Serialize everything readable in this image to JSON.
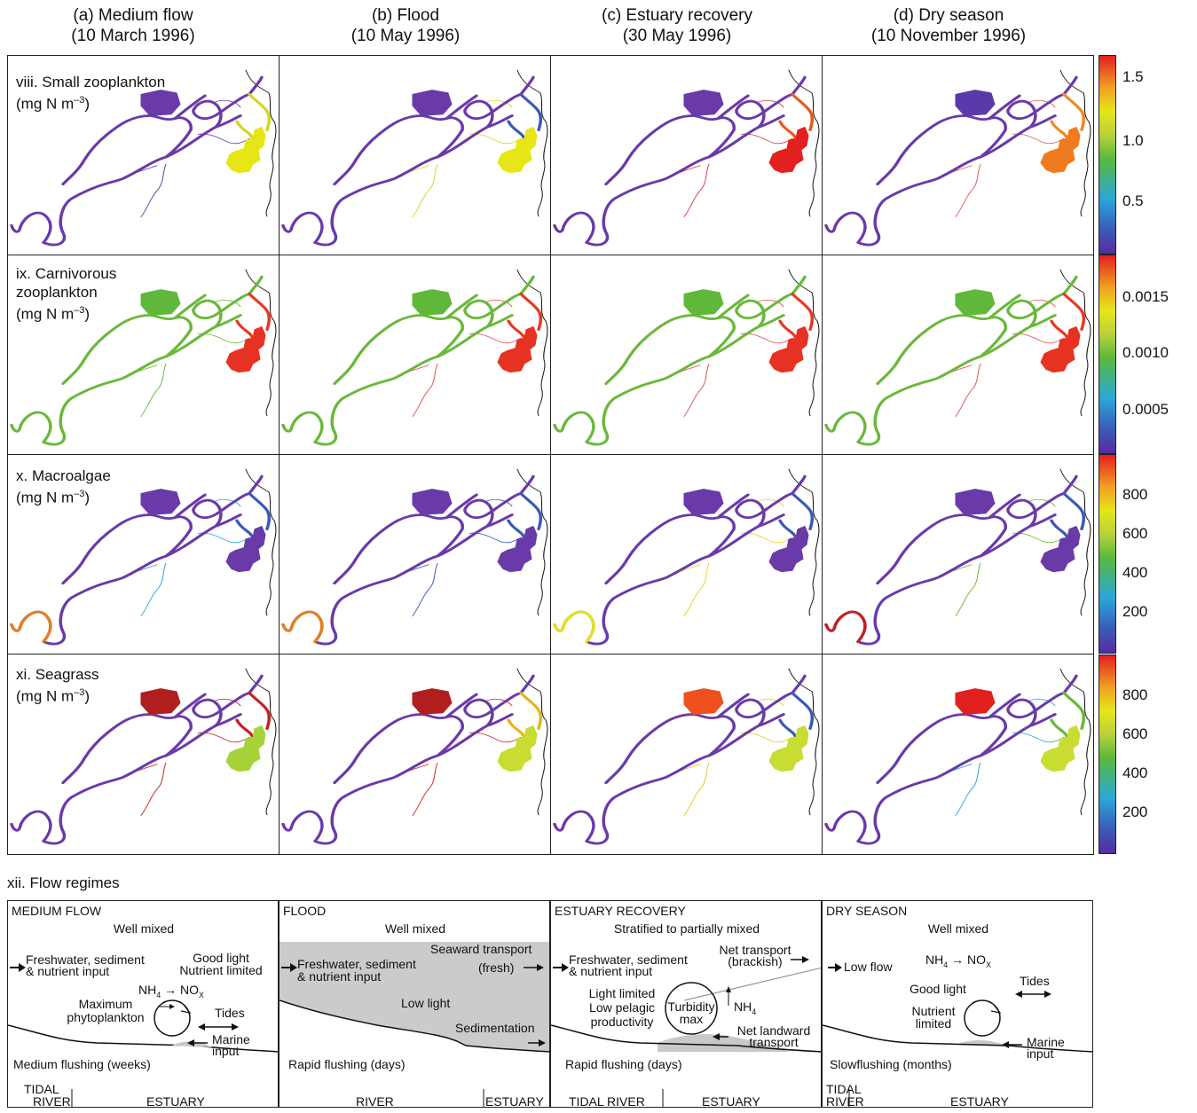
{
  "columns": [
    {
      "title": "(a) Medium flow",
      "date": "(10 March 1996)"
    },
    {
      "title": "(b) Flood",
      "date": "(10 May 1996)"
    },
    {
      "title": "(c) Estuary recovery",
      "date": "(30 May 1996)"
    },
    {
      "title": "(d) Dry season",
      "date": "(10 November 1996)"
    }
  ],
  "rows": [
    {
      "label_line1": "viii. Small zooplankton",
      "label_line2": "(mg N m",
      "unit_exp": "–3",
      "label_close": ")",
      "colorbar_ticks": [
        "1.5",
        "1.0",
        "0.5"
      ]
    },
    {
      "label_line1": "ix. Carnivorous",
      "label_line2": "zooplankton",
      "label_line3": "(mg N m",
      "unit_exp": "–3",
      "label_close": ")",
      "colorbar_ticks": [
        "0.0015",
        "0.0010",
        "0.0005"
      ]
    },
    {
      "label_line1": "x. Macroalgae",
      "label_line2": "(mg N m",
      "unit_exp": "–3",
      "label_close": ")",
      "colorbar_ticks": [
        "800",
        "600",
        "400",
        "200"
      ]
    },
    {
      "label_line1": "xi. Seagrass",
      "label_line2": "(mg N m",
      "unit_exp": "–3",
      "label_close": ")",
      "colorbar_ticks": [
        "800",
        "600",
        "400",
        "200"
      ]
    }
  ],
  "map_colors": {
    "r0": [
      {
        "river": "#6a3aa8",
        "lake": "#6a3aa8",
        "bay": "#e6e617",
        "upper": "#d4d423",
        "trib": "#6a3aa8"
      },
      {
        "river": "#6a3aa8",
        "lake": "#6a3aa8",
        "bay": "#e6e617",
        "upper": "#3a5ab8",
        "trib": "#d6d625"
      },
      {
        "river": "#6a3aa8",
        "lake": "#6a3aa8",
        "bay": "#e32020",
        "upper": "#e85a20",
        "trib": "#d94040"
      },
      {
        "river": "#6a3aa8",
        "lake": "#5a3aaa",
        "bay": "#f07a1e",
        "upper": "#f08a22",
        "trib": "#e06050"
      }
    ],
    "r1": [
      {
        "river": "#6ab83a",
        "lake": "#60b83a",
        "bay": "#e63222",
        "upper": "#e53a22",
        "trib": "#6ab83a"
      },
      {
        "river": "#6ab83a",
        "lake": "#60b83a",
        "bay": "#e63222",
        "upper": "#e53a22",
        "trib": "#e35050"
      },
      {
        "river": "#6ab83a",
        "lake": "#60b83a",
        "bay": "#e63222",
        "upper": "#e53a22",
        "trib": "#e35050"
      },
      {
        "river": "#6ab83a",
        "lake": "#60b83a",
        "bay": "#e63222",
        "upper": "#e53a22",
        "trib": "#e35050"
      }
    ],
    "r2": [
      {
        "river": "#6a3aa8",
        "lake": "#6a3aa8",
        "bay": "#6a3aa8",
        "upper": "#3a5ab8",
        "trib": "#2aa8d8",
        "head": "#e3801e"
      },
      {
        "river": "#6a3aa8",
        "lake": "#6a3aa8",
        "bay": "#6a3aa8",
        "upper": "#3a5ab8",
        "trib": "#3a5ab8",
        "head": "#e3801e"
      },
      {
        "river": "#6a3aa8",
        "lake": "#6a3aa8",
        "bay": "#6a3aa8",
        "upper": "#3a5ab8",
        "trib": "#e3d61e",
        "head": "#e3e31e"
      },
      {
        "river": "#6a3aa8",
        "lake": "#6a3aa8",
        "bay": "#6a3aa8",
        "upper": "#3a5ab8",
        "trib": "#6ab83a",
        "head": "#c42222"
      }
    ],
    "r3": [
      {
        "river": "#6a3aa8",
        "lake": "#b01e1e",
        "bay": "#a8d23a",
        "upper": "#c42222",
        "trib": "#c42222"
      },
      {
        "river": "#6a3aa8",
        "lake": "#b01e1e",
        "bay": "#c8dc32",
        "upper": "#e6b41e",
        "trib": "#d42828"
      },
      {
        "river": "#6a3aa8",
        "lake": "#f0501e",
        "bay": "#c8dc32",
        "upper": "#3a5ab8",
        "trib": "#e3c81e"
      },
      {
        "river": "#6a3aa8",
        "lake": "#e32020",
        "bay": "#c8dc32",
        "upper": "#6ab83a",
        "trib": "#2aa8d8"
      }
    ]
  },
  "flow_section_title": "xii. Flow regimes",
  "flow_panels": [
    {
      "title": "MEDIUM FLOW",
      "mixing": "Well mixed",
      "texts": [
        "Freshwater, sediment",
        "& nutrient input",
        "Good light",
        "Nutrient limited",
        "NH",
        "4",
        "NO",
        "X",
        "Maximum",
        "phytoplankton",
        "Tides",
        "Marine",
        "input",
        "Medium flushing (weeks)"
      ],
      "zone_left": "TIDAL",
      "zone_left2": "RIVER",
      "zone_right": "ESTUARY"
    },
    {
      "title": "FLOOD",
      "mixing": "Well mixed",
      "texts": [
        "Freshwater, sediment",
        "& nutrient input",
        "Seaward transport",
        "(fresh)",
        "Low light",
        "Sedimentation",
        "Rapid flushing (days)"
      ],
      "zone_left": "RIVER",
      "zone_right": "ESTUARY"
    },
    {
      "title": "ESTUARY RECOVERY",
      "mixing": "Stratified to partially mixed",
      "texts": [
        "Freshwater, sediment",
        "& nutrient input",
        "Net transport",
        "(brackish)",
        "Light limited",
        "Low pelagic",
        "productivity",
        "Turbidity",
        "max",
        "NH",
        "4",
        "Net landward",
        "transport",
        "Rapid flushing (days)"
      ],
      "zone_left": "TIDAL RIVER",
      "zone_right": "ESTUARY"
    },
    {
      "title": "DRY SEASON",
      "mixing": "Well mixed",
      "texts": [
        "Low flow",
        "NH",
        "4",
        "NO",
        "X",
        "Good light",
        "Tides",
        "Nutrient",
        "limited",
        "Marine",
        "input",
        "Slowflushing (months)"
      ],
      "zone_left": "TIDAL",
      "zone_left2": "RIVER",
      "zone_right": "ESTUARY"
    }
  ]
}
